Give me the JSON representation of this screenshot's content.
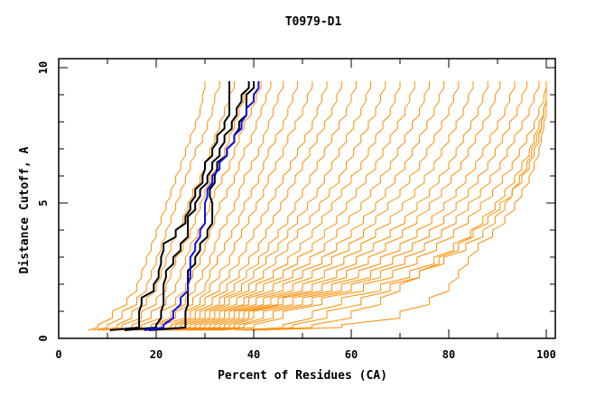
{
  "chart_data": {
    "type": "line",
    "title": "T0979-D1",
    "xlabel": "Percent of Residues (CA)",
    "ylabel": "Distance Cutoff, A",
    "xlim": [
      0,
      100
    ],
    "ylim": [
      0,
      10
    ],
    "xticks": [
      0,
      20,
      40,
      60,
      80,
      100
    ],
    "xtick_labels": [
      "0",
      "20",
      "40",
      "60",
      "80",
      "100"
    ],
    "yticks": [
      0,
      5,
      10
    ],
    "ytick_labels": [
      "0",
      "5",
      "10"
    ],
    "grid": false,
    "legend": "none",
    "colors": {
      "models": "#ff8c00",
      "highlight_black": "#000000",
      "highlight_blue": "#1010ee",
      "axes": "#000000"
    },
    "y_levels": [
      0.3,
      0.5,
      1.0,
      1.5,
      2.0,
      2.5,
      3.0,
      3.5,
      4.0,
      4.5,
      5.0,
      5.5,
      6.0,
      6.5,
      7.0,
      7.5,
      8.0,
      8.5,
      9.0,
      9.5
    ],
    "series": [
      {
        "name": "black-1",
        "color": "#000000",
        "x": [
          10.5,
          16.5,
          16.5,
          17,
          19.5,
          20.5,
          21,
          21.5,
          24,
          26,
          27,
          28,
          29.5,
          30,
          31.5,
          32.5,
          34,
          35,
          35,
          35
        ]
      },
      {
        "name": "black-2",
        "color": "#000000",
        "x": [
          13.5,
          20,
          21,
          21.5,
          21.5,
          22,
          23.5,
          25,
          26.5,
          26.5,
          28,
          29,
          30.5,
          31.5,
          33,
          34,
          35.5,
          36.5,
          37.5,
          39
        ]
      },
      {
        "name": "black-3",
        "color": "#000000",
        "x": [
          18.5,
          26,
          26,
          26.5,
          26.5,
          26.5,
          28,
          29,
          30.5,
          31.5,
          31.5,
          31,
          32,
          32.5,
          34.5,
          36,
          37,
          38.5,
          38.5,
          40
        ]
      },
      {
        "name": "blue-1",
        "color": "#1010ee",
        "x": [
          17.5,
          21.5,
          23.5,
          25,
          26.5,
          27,
          27,
          28,
          29,
          30,
          30,
          30.5,
          31.5,
          33,
          34.5,
          36,
          37.5,
          38.5,
          40,
          41
        ]
      },
      {
        "name": "model-01",
        "color": "#ff8c00",
        "x": [
          6,
          8,
          11,
          14,
          16,
          17,
          18,
          19,
          20,
          21,
          22,
          23,
          24,
          25,
          26,
          27,
          28,
          29,
          29.5,
          30
        ]
      },
      {
        "name": "model-02",
        "color": "#ff8c00",
        "x": [
          7,
          10,
          13,
          16,
          18,
          19,
          20,
          21,
          22,
          23,
          24,
          25,
          26,
          27,
          28,
          29.5,
          30.5,
          31.5,
          32,
          33
        ]
      },
      {
        "name": "model-03",
        "color": "#ff8c00",
        "x": [
          8,
          12,
          15,
          18,
          20,
          21,
          22,
          23,
          24,
          25.5,
          26.5,
          27.5,
          29,
          30,
          31,
          32,
          33,
          34,
          35,
          36
        ]
      },
      {
        "name": "model-04",
        "color": "#ff8c00",
        "x": [
          9,
          13,
          17,
          20,
          22,
          23,
          24,
          25.5,
          27,
          28,
          29,
          30,
          31,
          32.5,
          34,
          35,
          36,
          37,
          38,
          39
        ]
      },
      {
        "name": "model-05",
        "color": "#ff8c00",
        "x": [
          11,
          15,
          19,
          22,
          24,
          25,
          26,
          27,
          28.5,
          30,
          31,
          32,
          33.5,
          35,
          36,
          37,
          38,
          39.5,
          40.5,
          41.5
        ]
      },
      {
        "name": "model-06",
        "color": "#ff8c00",
        "x": [
          12,
          17,
          21,
          24,
          26,
          27.5,
          29,
          30,
          31,
          32,
          33,
          34.5,
          36,
          37,
          38,
          39.5,
          40.5,
          41.5,
          42.5,
          43.5
        ]
      },
      {
        "name": "model-07",
        "color": "#ff8c00",
        "x": [
          14,
          19,
          23,
          26,
          28,
          29.5,
          31,
          32,
          33,
          34.5,
          36,
          37,
          38,
          39.5,
          41,
          42,
          43,
          44,
          45,
          46
        ]
      },
      {
        "name": "model-08",
        "color": "#ff8c00",
        "x": [
          15,
          20,
          24,
          27.5,
          30,
          31,
          32.5,
          34,
          35.5,
          37,
          38,
          39.5,
          41,
          42,
          43,
          44.5,
          46,
          47,
          48,
          49
        ]
      },
      {
        "name": "model-09",
        "color": "#ff8c00",
        "x": [
          16,
          21,
          26,
          29,
          31,
          33,
          35,
          36,
          37.5,
          39,
          40.5,
          42,
          43,
          44.5,
          46,
          47,
          48.5,
          50,
          51,
          52
        ]
      },
      {
        "name": "model-10",
        "color": "#ff8c00",
        "x": [
          17,
          23,
          27,
          30,
          33,
          35,
          37,
          38.5,
          40,
          41.5,
          43,
          44.5,
          46,
          47.5,
          49,
          50.5,
          52,
          53,
          54,
          55
        ]
      },
      {
        "name": "model-11",
        "color": "#ff8c00",
        "x": [
          18,
          24,
          28,
          31.5,
          34.5,
          37,
          39,
          41,
          42.5,
          44,
          45.5,
          47,
          48.5,
          50,
          51.5,
          53,
          54.5,
          56,
          57,
          58
        ]
      },
      {
        "name": "model-12",
        "color": "#ff8c00",
        "x": [
          19,
          25,
          29,
          33,
          36,
          38.5,
          41,
          43,
          45,
          47,
          48.5,
          50,
          51.5,
          53,
          54.5,
          56,
          57.5,
          59,
          60,
          61
        ]
      },
      {
        "name": "model-13",
        "color": "#ff8c00",
        "x": [
          20,
          26,
          30,
          34,
          37.5,
          40,
          42.5,
          45,
          47,
          49,
          51,
          53,
          54.5,
          56,
          57.5,
          59,
          60.5,
          62,
          63,
          64
        ]
      },
      {
        "name": "model-14",
        "color": "#ff8c00",
        "x": [
          21,
          27,
          31,
          35,
          39,
          42,
          44.5,
          47,
          49,
          51.5,
          53.5,
          55.5,
          57.5,
          59,
          60.5,
          62,
          63.5,
          65,
          66,
          67
        ]
      },
      {
        "name": "model-15",
        "color": "#ff8c00",
        "x": [
          22,
          28,
          32,
          36.5,
          40.5,
          44,
          47,
          49.5,
          52,
          54,
          56,
          58,
          60,
          62,
          63.5,
          65,
          66.5,
          68,
          69,
          70
        ]
      },
      {
        "name": "model-16",
        "color": "#ff8c00",
        "x": [
          23,
          29,
          33,
          38,
          42,
          46,
          49,
          52,
          54.5,
          57,
          59,
          61,
          63,
          65,
          66.5,
          68,
          69.5,
          71,
          72,
          73
        ]
      },
      {
        "name": "model-17",
        "color": "#ff8c00",
        "x": [
          24,
          30,
          34,
          39,
          44,
          48,
          51.5,
          54.5,
          57,
          59.5,
          62,
          64,
          66,
          68,
          69.5,
          71,
          72.5,
          74,
          75,
          76
        ]
      },
      {
        "name": "model-18",
        "color": "#ff8c00",
        "x": [
          25,
          31,
          35,
          40.5,
          46,
          50,
          54,
          57,
          60,
          62.5,
          65,
          67,
          69,
          71,
          72.5,
          74,
          75.5,
          77,
          78,
          79
        ]
      },
      {
        "name": "model-19",
        "color": "#ff8c00",
        "x": [
          26,
          32,
          36,
          42,
          48,
          52,
          56,
          59.5,
          62.5,
          65,
          67.5,
          70,
          72,
          74,
          75.5,
          77,
          78.5,
          80,
          81,
          82
        ]
      },
      {
        "name": "model-20",
        "color": "#ff8c00",
        "x": [
          27,
          33,
          37,
          43.5,
          50,
          54.5,
          58.5,
          62,
          65,
          68,
          70.5,
          73,
          75,
          77,
          78.5,
          80,
          81.5,
          83,
          84,
          85
        ]
      },
      {
        "name": "model-21",
        "color": "#ff8c00",
        "x": [
          28,
          34,
          38,
          45,
          52,
          57,
          61,
          64.5,
          68,
          71,
          73.5,
          76,
          78,
          80,
          81.5,
          83,
          84.5,
          86,
          87,
          88
        ]
      },
      {
        "name": "model-22",
        "color": "#ff8c00",
        "x": [
          29,
          35,
          39,
          46,
          54,
          59,
          63.5,
          67,
          70.5,
          73.5,
          76,
          78.5,
          80.5,
          82.5,
          84,
          85.5,
          87,
          88.5,
          89.5,
          90.5
        ]
      },
      {
        "name": "model-23",
        "color": "#ff8c00",
        "x": [
          30,
          36,
          40,
          48,
          56,
          61.5,
          66,
          70,
          73.5,
          76.5,
          79,
          81.5,
          83.5,
          85.5,
          87,
          88.5,
          90,
          91.5,
          92.5,
          93.5
        ]
      },
      {
        "name": "model-24",
        "color": "#ff8c00",
        "x": [
          31,
          37,
          42,
          50,
          58,
          64,
          68.5,
          72.5,
          76,
          79,
          81.5,
          84,
          86,
          88,
          89.5,
          91,
          92.5,
          94,
          95,
          96
        ]
      },
      {
        "name": "model-25",
        "color": "#ff8c00",
        "x": [
          32,
          38,
          44,
          52,
          60,
          66,
          71,
          75,
          78.5,
          81.5,
          84,
          86.5,
          88.5,
          90.5,
          92,
          93.5,
          95,
          96.5,
          97.5,
          98.5
        ]
      },
      {
        "name": "model-26",
        "color": "#ff8c00",
        "x": [
          33,
          40,
          46,
          54,
          62.5,
          68.5,
          73.5,
          77.5,
          81,
          84,
          86.5,
          89,
          91,
          93,
          94.5,
          96,
          97.5,
          98.5,
          99.5,
          100
        ]
      },
      {
        "name": "model-27",
        "color": "#ff8c00",
        "x": [
          36,
          46,
          52,
          58,
          66,
          72,
          77,
          81,
          84.5,
          87,
          89.5,
          91.5,
          93.5,
          95,
          96.5,
          97.5,
          98.5,
          99.5,
          100,
          100
        ]
      },
      {
        "name": "model-28",
        "color": "#ff8c00",
        "x": [
          38,
          52,
          60,
          66,
          70,
          74,
          79,
          83.5,
          87,
          89.5,
          91.5,
          93,
          94.5,
          96,
          97,
          98,
          99,
          99.5,
          100,
          100
        ]
      },
      {
        "name": "model-29",
        "color": "#ff8c00",
        "x": [
          40,
          58,
          70,
          76,
          80,
          82,
          84,
          86,
          89,
          91.5,
          93.5,
          95,
          96.5,
          97.5,
          98.5,
          99,
          99.5,
          100,
          100,
          100
        ]
      },
      {
        "name": "model-30",
        "color": "#ff8c00",
        "x": [
          42,
          48,
          55,
          62,
          68,
          74,
          78,
          82,
          85,
          88,
          90.5,
          93,
          95,
          96.5,
          97.5,
          98.5,
          99,
          99.5,
          100,
          100
        ]
      }
    ]
  }
}
